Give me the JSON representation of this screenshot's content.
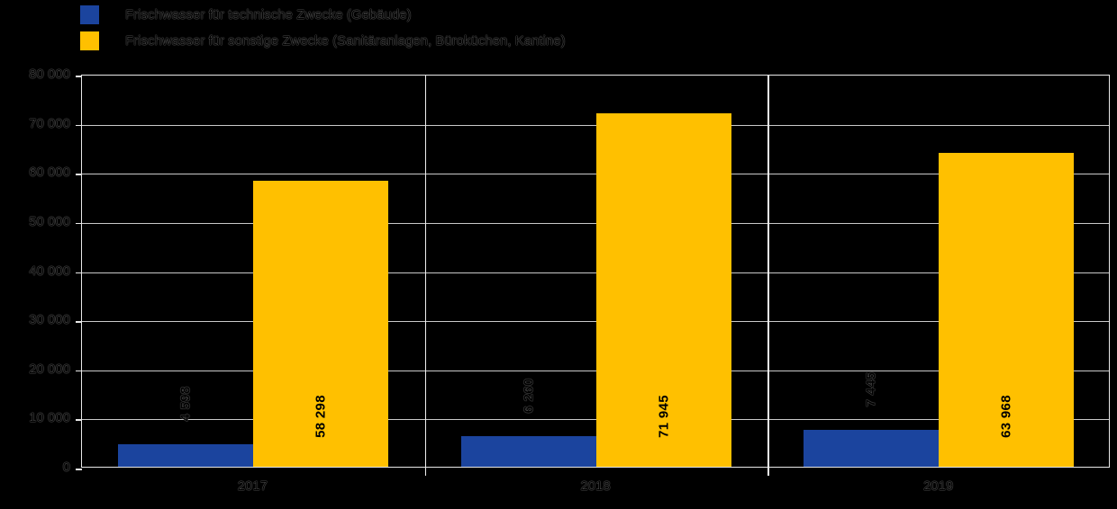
{
  "legend": {
    "items": [
      {
        "label": "Frischwasser für technische Zwecke (Gebäude)",
        "color": "#1b449e"
      },
      {
        "label": "Frischwasser für sonstige Zwecke (Sanitäranlagen, Büroküchen, Kantine)",
        "color": "#ffc000"
      }
    ]
  },
  "chart_data": {
    "type": "bar",
    "title": "",
    "xlabel": "",
    "ylabel": "",
    "categories": [
      "2017",
      "2018",
      "2019"
    ],
    "series": [
      {
        "name": "Frischwasser für technische Zwecke (Gebäude)",
        "color": "#1b449e",
        "values": [
          4598,
          6260,
          7445
        ],
        "display": [
          "4 598",
          "6 260",
          "7 445"
        ]
      },
      {
        "name": "Frischwasser für sonstige Zwecke (Sanitäranlagen, Büroküchen, Kantine)",
        "color": "#ffc000",
        "values": [
          58298,
          71945,
          63968
        ],
        "display": [
          "58 298",
          "71 945",
          "63 968"
        ]
      }
    ],
    "ylim": [
      0,
      80000
    ],
    "ytick_step": 10000,
    "yticks": [
      "0",
      "10 000",
      "20 000",
      "30 000",
      "40 000",
      "50 000",
      "60 000",
      "70 000",
      "80 000"
    ],
    "grid": true,
    "legend_position": "top-left",
    "background": "#000000"
  }
}
